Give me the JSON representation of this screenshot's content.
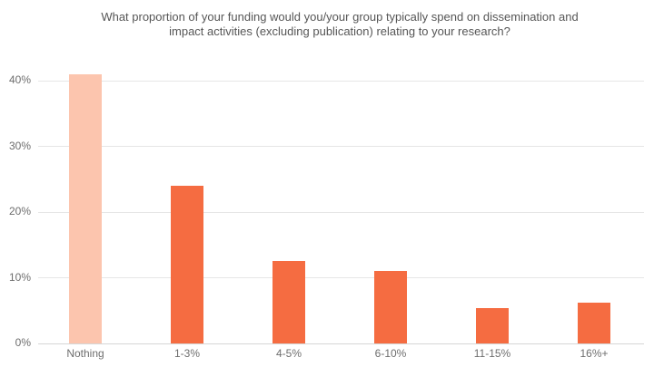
{
  "chart_data": {
    "type": "bar",
    "title": "What proportion of your funding would you/your group typically spend on dissemination and impact activities (excluding publication) relating to your research?",
    "title_lines": [
      "What proportion of your funding would you/your group typically spend on dissemination and",
      "impact activities (excluding publication) relating to your research?"
    ],
    "categories": [
      "Nothing",
      "1-3%",
      "4-5%",
      "6-10%",
      "11-15%",
      "16%+"
    ],
    "values": [
      41,
      24,
      12.5,
      11,
      5.4,
      6.2
    ],
    "bar_colors": [
      "#fcc5ae",
      "#f56c41",
      "#f56c41",
      "#f56c41",
      "#f56c41",
      "#f56c41"
    ],
    "xlabel": "",
    "ylabel": "",
    "y_ticks": [
      "0%",
      "10%",
      "20%",
      "30%",
      "40%"
    ],
    "y_tick_values": [
      0,
      10,
      20,
      30,
      40
    ],
    "ylim": [
      0,
      40
    ],
    "grid": true,
    "legend": "none",
    "colors": {
      "accent_bar": "#f56c41",
      "highlight_bar": "#fcc5ae",
      "gridline": "#e6e6e6",
      "baseline": "#d6d6d6",
      "axis_text": "#6e6e6e",
      "title_text": "#565656"
    }
  }
}
